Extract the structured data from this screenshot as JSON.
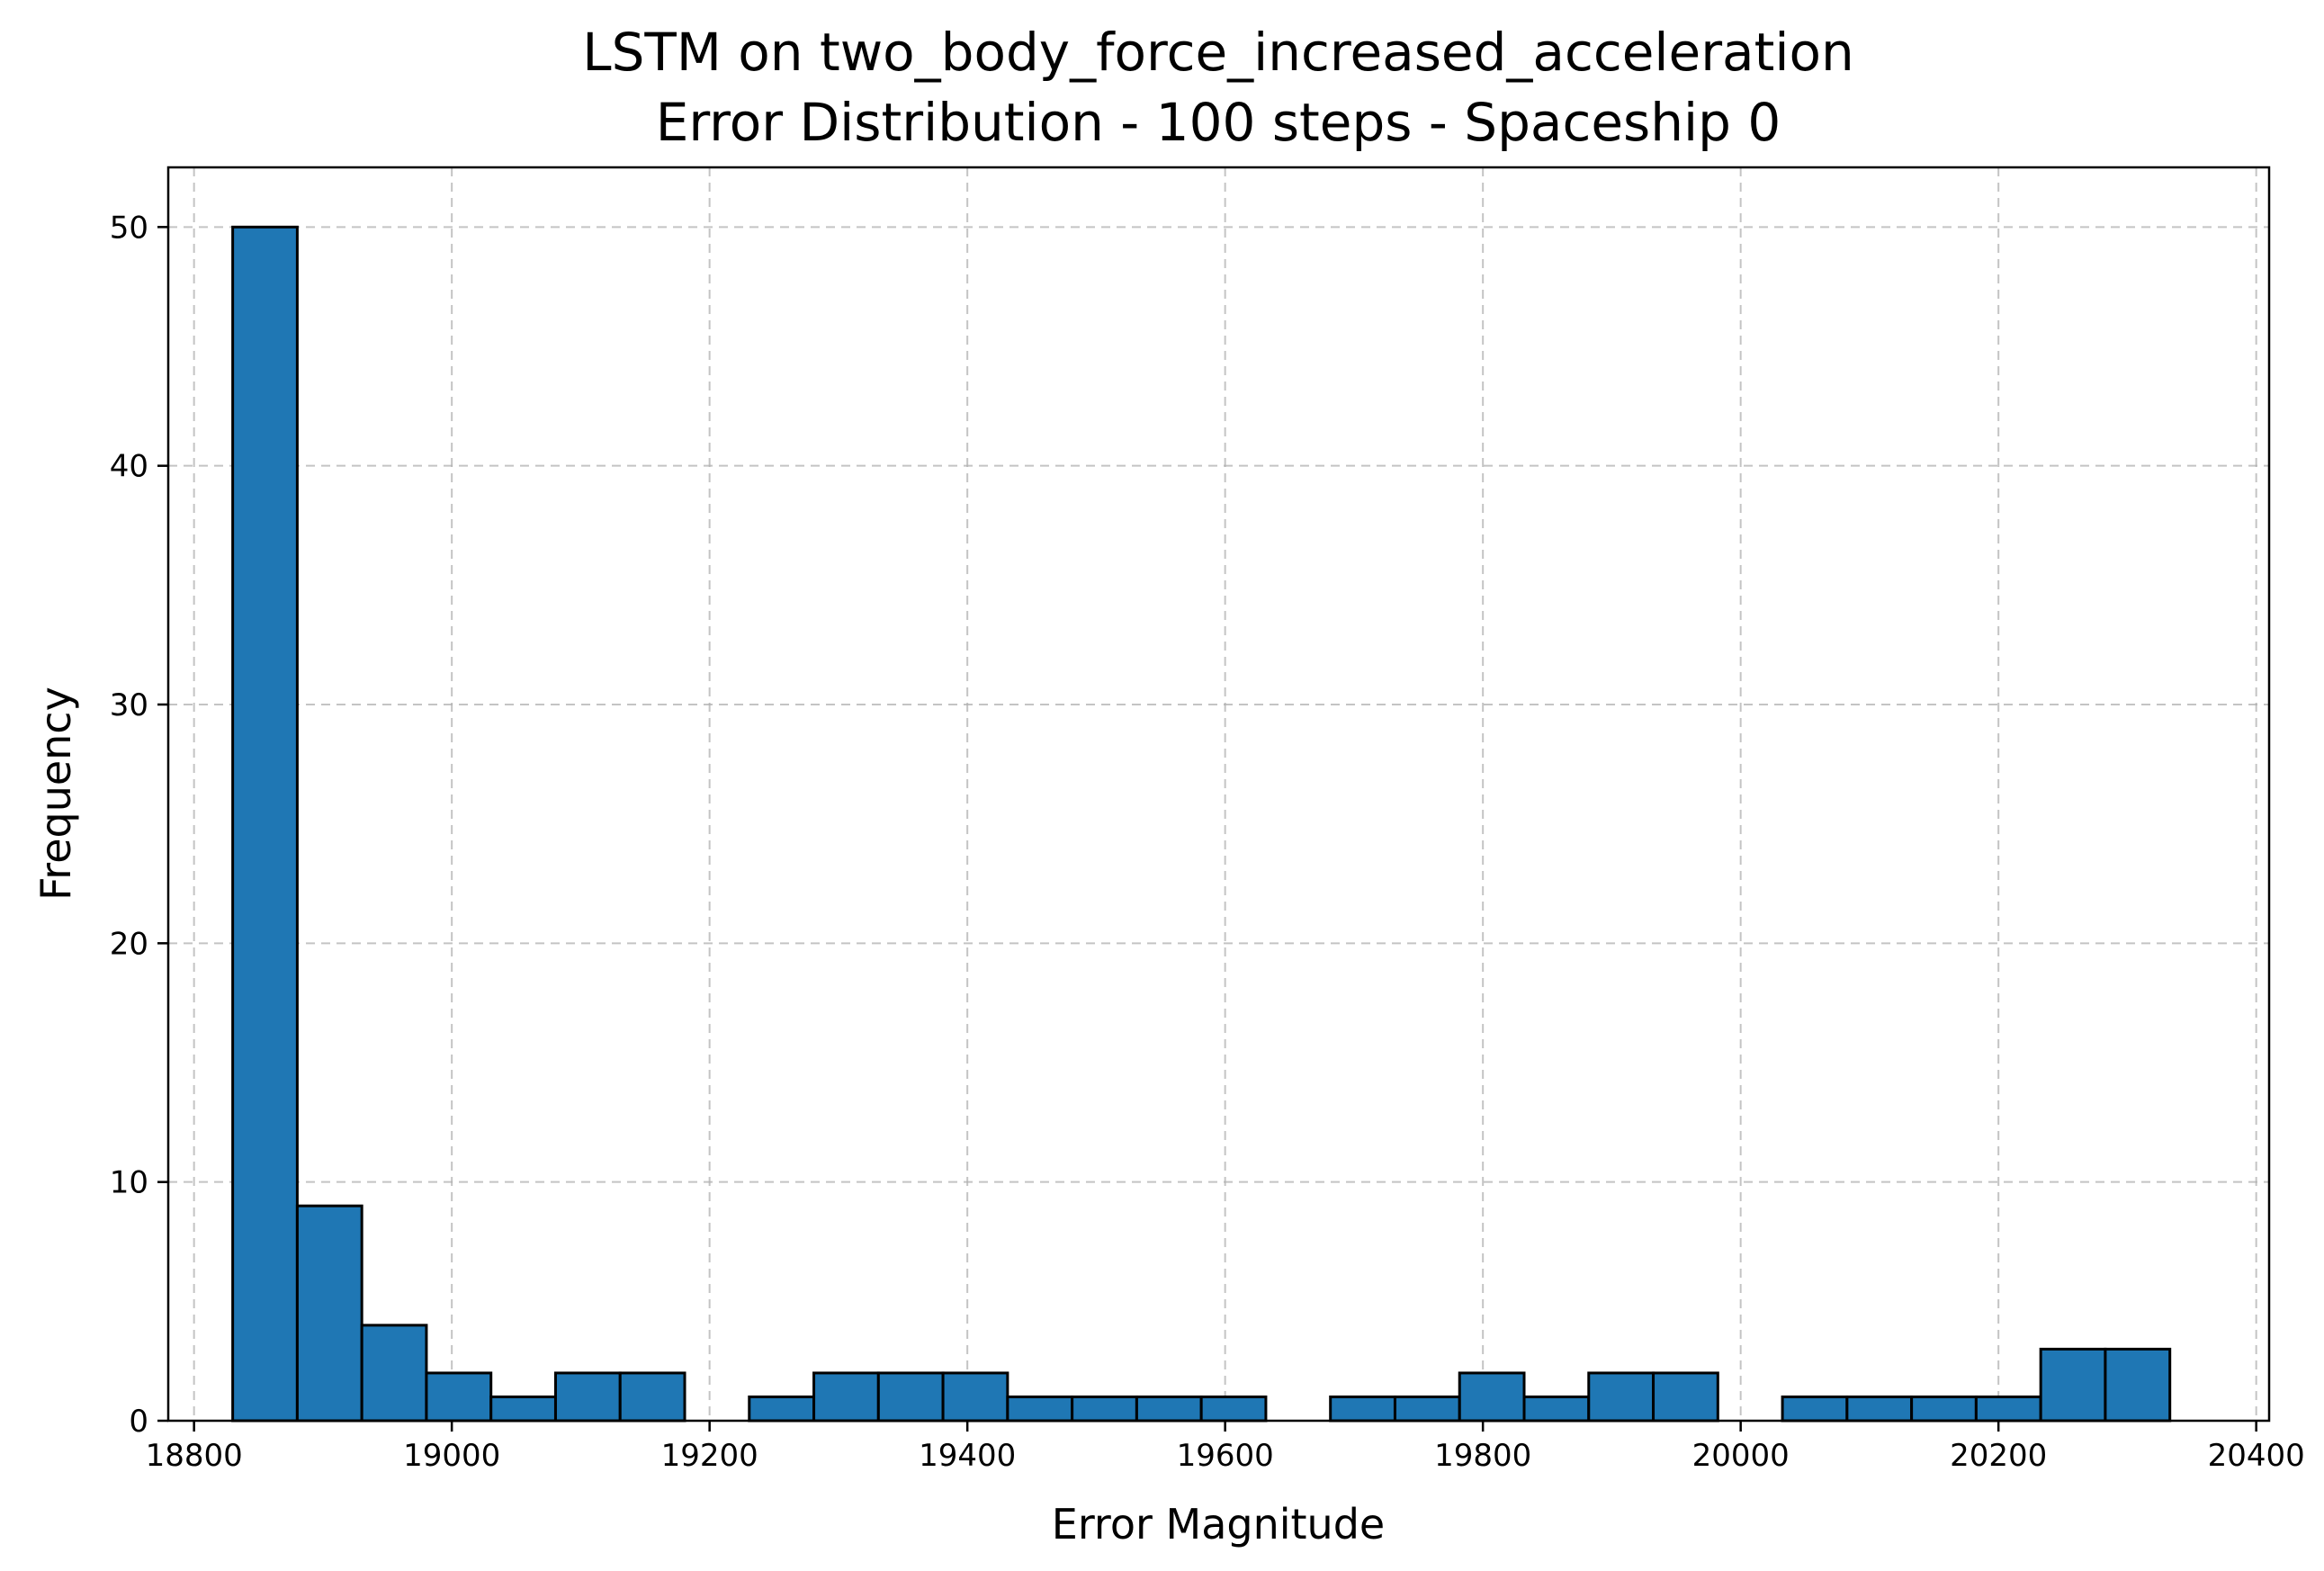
{
  "chart_data": {
    "type": "bar",
    "title": "LSTM on two_body_force_increased_acceleration",
    "subtitle": "Error Distribution - 100 steps - Spaceship 0",
    "xlabel": "Error Magnitude",
    "ylabel": "Frequency",
    "xlim": [
      18780,
      20410
    ],
    "ylim": [
      0,
      52.5
    ],
    "xticks": [
      18800,
      19000,
      19200,
      19400,
      19600,
      19800,
      20000,
      20200,
      20400
    ],
    "yticks": [
      0,
      10,
      20,
      30,
      40,
      50
    ],
    "grid": true,
    "bar_color": "#1f77b4",
    "edge_color": "#000000",
    "bin_start": 18830,
    "bin_width": 50.1,
    "counts": [
      50,
      9,
      4,
      2,
      1,
      2,
      2,
      0,
      1,
      2,
      2,
      2,
      1,
      1,
      1,
      1,
      0,
      1,
      1,
      2,
      1,
      2,
      2,
      0,
      1,
      1,
      1,
      1,
      3,
      3
    ]
  }
}
